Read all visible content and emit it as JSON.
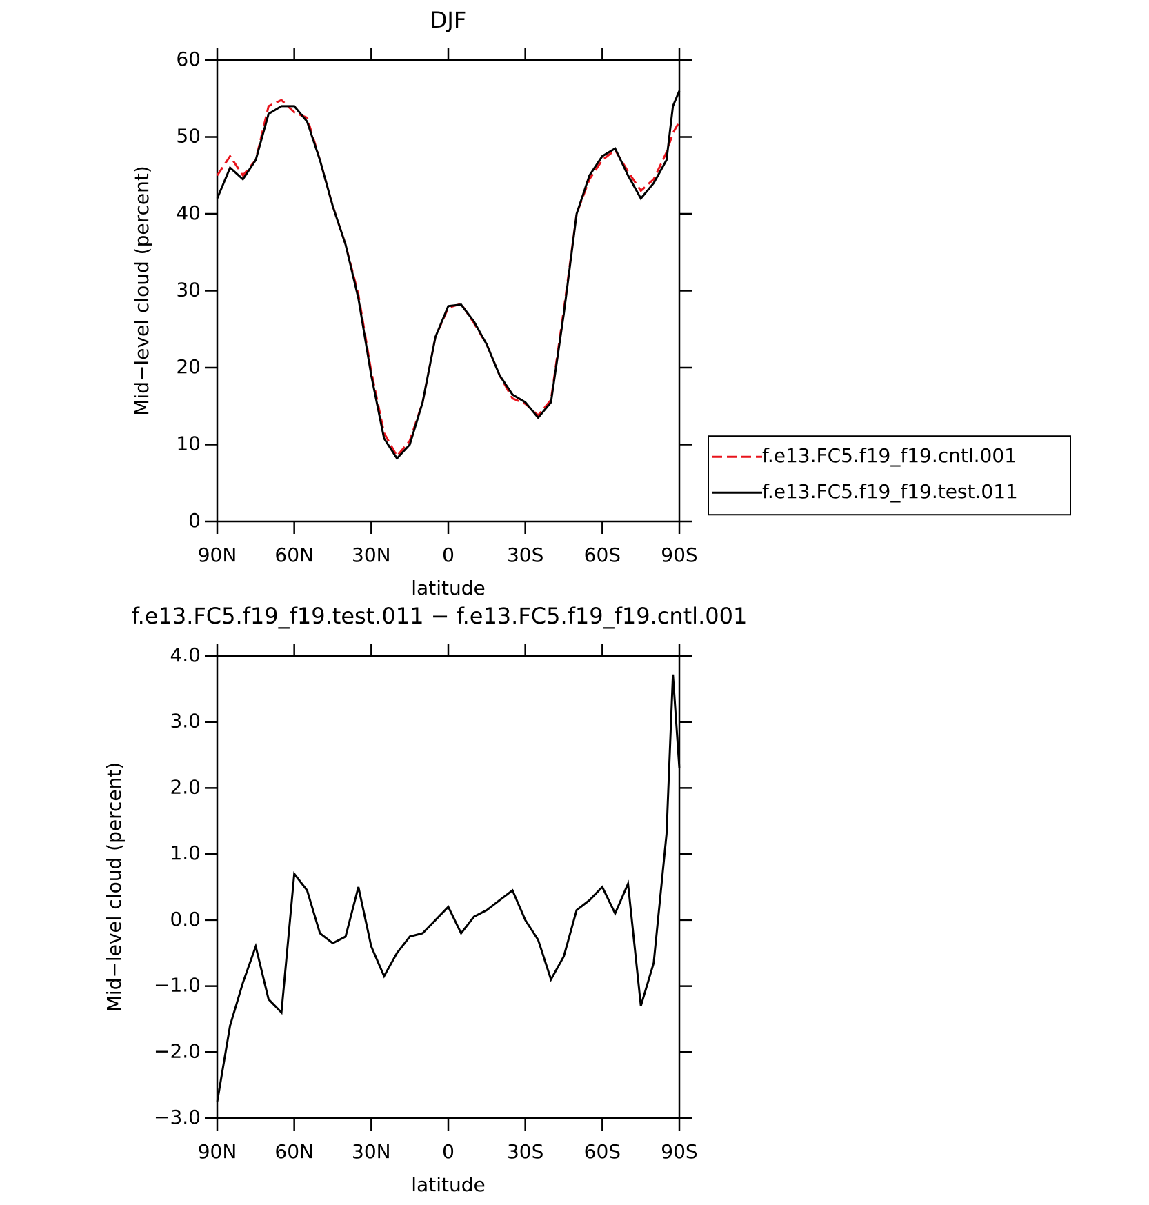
{
  "chart_data": [
    {
      "type": "line",
      "title": "DJF",
      "ylabel": "Mid−level cloud (percent)",
      "xlabel": "latitude",
      "x": [
        90,
        85,
        80,
        75,
        70,
        65,
        60,
        55,
        50,
        45,
        40,
        35,
        30,
        25,
        20,
        15,
        10,
        5,
        0,
        -5,
        -10,
        -15,
        -20,
        -25,
        -30,
        -35,
        -40,
        -45,
        -50,
        -55,
        -60,
        -65,
        -70,
        -75,
        -80,
        -85,
        -87.5,
        -90
      ],
      "series": [
        {
          "name": "f.e13.FC5.f19_f19.cntl.001",
          "color": "#e8141c",
          "dash": true,
          "values": [
            45,
            47.5,
            45,
            47,
            54,
            54.8,
            53.2,
            52.5,
            47,
            41,
            36,
            29.5,
            19.5,
            11.5,
            8.5,
            10.5,
            15.5,
            24,
            27.8,
            28.3,
            25.8,
            23,
            19,
            16,
            15.3,
            13.8,
            15.8,
            27.5,
            40,
            44.5,
            47,
            48.3,
            45.5,
            43,
            44.5,
            48,
            50.5,
            52
          ]
        },
        {
          "name": "f.e13.FC5.f19_f19.test.011",
          "color": "#000000",
          "dash": false,
          "values": [
            42,
            46,
            44.5,
            47,
            53,
            54,
            54,
            52,
            47,
            41,
            36,
            29,
            19,
            10.8,
            8.2,
            10,
            15.5,
            24,
            28,
            28.2,
            26,
            23,
            19,
            16.5,
            15.5,
            13.5,
            15.5,
            27,
            40,
            45,
            47.5,
            48.5,
            45,
            42,
            44,
            47,
            54,
            56
          ]
        }
      ],
      "xlim": [
        90,
        -90
      ],
      "xticks": [
        {
          "value": 90,
          "label": "90N"
        },
        {
          "value": 60,
          "label": "60N"
        },
        {
          "value": 30,
          "label": "30N"
        },
        0,
        {
          "value": -30,
          "label": "30S"
        },
        {
          "value": -60,
          "label": "60S"
        },
        {
          "value": -90,
          "label": "90S"
        }
      ],
      "ylim": [
        0,
        60
      ],
      "yticks": [
        0,
        10,
        20,
        30,
        40,
        50,
        60
      ],
      "legend": "right",
      "grid": false
    },
    {
      "type": "line",
      "title": "f.e13.FC5.f19_f19.test.011 − f.e13.FC5.f19_f19.cntl.001",
      "ylabel": "Mid−level cloud (percent)",
      "xlabel": "latitude",
      "x": [
        90,
        85,
        80,
        75,
        70,
        65,
        60,
        55,
        50,
        45,
        40,
        35,
        30,
        25,
        20,
        15,
        10,
        5,
        0,
        -5,
        -10,
        -15,
        -20,
        -25,
        -30,
        -35,
        -40,
        -45,
        -50,
        -55,
        -60,
        -65,
        -70,
        -75,
        -80,
        -85,
        -87.5,
        -90
      ],
      "series": [
        {
          "color": "#000000",
          "dash": false,
          "values": [
            -2.75,
            -1.6,
            -0.95,
            -0.4,
            -1.2,
            -1.4,
            0.7,
            0.45,
            -0.2,
            -0.35,
            -0.25,
            0.5,
            -0.4,
            -0.85,
            -0.5,
            -0.25,
            -0.2,
            0.0,
            0.2,
            -0.2,
            0.05,
            0.15,
            0.3,
            0.45,
            0.0,
            -0.3,
            -0.9,
            -0.55,
            0.15,
            0.3,
            0.5,
            0.1,
            0.55,
            -1.3,
            -0.65,
            1.3,
            3.72,
            2.3
          ]
        }
      ],
      "xlim": [
        90,
        -90
      ],
      "xticks": [
        {
          "value": 90,
          "label": "90N"
        },
        {
          "value": 60,
          "label": "60N"
        },
        {
          "value": 30,
          "label": "30N"
        },
        0,
        {
          "value": -30,
          "label": "30S"
        },
        {
          "value": -60,
          "label": "60S"
        },
        {
          "value": -90,
          "label": "90S"
        }
      ],
      "ylim": [
        -3,
        4
      ],
      "yticks": [
        {
          "value": -3,
          "label": "−3.0"
        },
        {
          "value": -2,
          "label": "−2.0"
        },
        {
          "value": -1,
          "label": "−1.0"
        },
        {
          "value": 0,
          "label": "0.0"
        },
        {
          "value": 1,
          "label": "1.0"
        },
        {
          "value": 2,
          "label": "2.0"
        },
        {
          "value": 3,
          "label": "3.0"
        },
        {
          "value": 4,
          "label": "4.0"
        }
      ],
      "grid": false
    }
  ]
}
